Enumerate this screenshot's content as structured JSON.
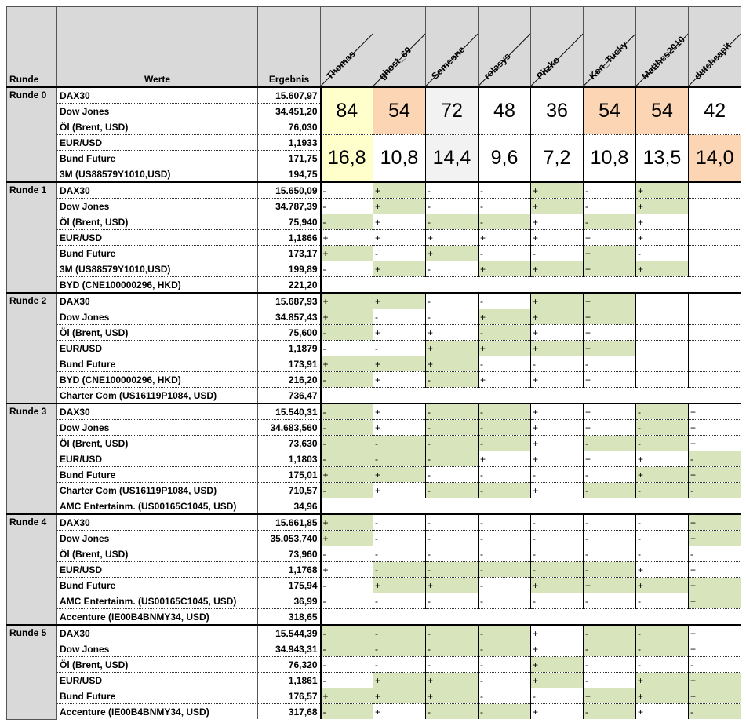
{
  "header": {
    "runde": "Runde",
    "werte": "Werte",
    "ergebnis": "Ergebnis",
    "players": [
      "Thomas",
      "ghost_69",
      "Someone",
      "rolasys",
      "Pitzko",
      "Ken_Tucky",
      "Matthes2010",
      "dutchcapit"
    ]
  },
  "colors": {
    "hit": "#d8e4bc",
    "leader": "#ffffcc",
    "peach": "#fcd5b4",
    "grey": "#f2f2f2",
    "header_bg": "#d9d9d9"
  },
  "round0": {
    "label": "Runde 0",
    "rows": [
      {
        "name": "DAX30",
        "value": "15.607,97"
      },
      {
        "name": "Dow Jones",
        "value": "34.451,20"
      },
      {
        "name": "Öl (Brent, USD)",
        "value": "76,030"
      },
      {
        "name": "EUR/USD",
        "value": "1,1933"
      },
      {
        "name": "Bund Future",
        "value": "171,75"
      },
      {
        "name": "3M (US88579Y1010,USD)",
        "value": "194,75"
      }
    ],
    "points": [
      "84",
      "54",
      "72",
      "48",
      "36",
      "54",
      "54",
      "42"
    ],
    "points_highlight": [
      "leader",
      "peach",
      "grey",
      "",
      "",
      "peach",
      "peach",
      ""
    ],
    "ratio": [
      "16,8",
      "10,8",
      "14,4",
      "9,6",
      "7,2",
      "10,8",
      "13,5",
      "14,0"
    ],
    "ratio_highlight": [
      "leader",
      "",
      "grey",
      "",
      "",
      "",
      "",
      "peach"
    ]
  },
  "rounds": [
    {
      "label": "Runde 1",
      "rows": [
        {
          "name": "DAX30",
          "value": "15.650,09",
          "signs": [
            "-",
            "+",
            "-",
            "-",
            "+",
            "-",
            "+",
            ""
          ],
          "hits": [
            0,
            1,
            0,
            0,
            1,
            0,
            1,
            0
          ]
        },
        {
          "name": "Dow Jones",
          "value": "34.787,39",
          "signs": [
            "-",
            "+",
            "-",
            "-",
            "+",
            "-",
            "+",
            ""
          ],
          "hits": [
            0,
            1,
            0,
            0,
            1,
            0,
            1,
            0
          ]
        },
        {
          "name": "Öl (Brent, USD)",
          "value": "75,940",
          "signs": [
            "-",
            "+",
            "-",
            "-",
            "+",
            "-",
            "+",
            ""
          ],
          "hits": [
            1,
            0,
            1,
            1,
            0,
            1,
            0,
            0
          ]
        },
        {
          "name": "EUR/USD",
          "value": "1,1866",
          "signs": [
            "+",
            "+",
            "+",
            "+",
            "+",
            "+",
            "+",
            ""
          ],
          "hits": [
            0,
            0,
            0,
            0,
            0,
            0,
            0,
            0
          ]
        },
        {
          "name": "Bund Future",
          "value": "173,17",
          "signs": [
            "+",
            "-",
            "+",
            "-",
            "-",
            "+",
            "-",
            ""
          ],
          "hits": [
            1,
            0,
            1,
            0,
            0,
            1,
            0,
            0
          ]
        },
        {
          "name": "3M (US88579Y1010,USD)",
          "value": "199,89",
          "signs": [
            "-",
            "+",
            "-",
            "+",
            "+",
            "+",
            "+",
            ""
          ],
          "hits": [
            0,
            1,
            0,
            1,
            1,
            1,
            1,
            0
          ]
        },
        {
          "name": "BYD (CNE100000296, HKD)",
          "value": "221,20"
        }
      ]
    },
    {
      "label": "Runde 2",
      "rows": [
        {
          "name": "DAX30",
          "value": "15.687,93",
          "signs": [
            "+",
            "+",
            "-",
            "-",
            "+",
            "+",
            "",
            ""
          ],
          "hits": [
            1,
            1,
            0,
            0,
            1,
            1,
            0,
            0
          ]
        },
        {
          "name": "Dow Jones",
          "value": "34.857,43",
          "signs": [
            "+",
            "-",
            "-",
            "+",
            "+",
            "+",
            "",
            ""
          ],
          "hits": [
            1,
            0,
            0,
            1,
            1,
            1,
            0,
            0
          ]
        },
        {
          "name": "Öl (Brent, USD)",
          "value": "75,600",
          "signs": [
            "-",
            "+",
            "+",
            "-",
            "+",
            "+",
            "",
            ""
          ],
          "hits": [
            1,
            0,
            0,
            1,
            0,
            0,
            0,
            0
          ]
        },
        {
          "name": "EUR/USD",
          "value": "1,1879",
          "signs": [
            "-",
            "-",
            "+",
            "+",
            "+",
            "+",
            "",
            ""
          ],
          "hits": [
            0,
            0,
            1,
            1,
            1,
            1,
            0,
            0
          ]
        },
        {
          "name": "Bund Future",
          "value": "173,91",
          "signs": [
            "+",
            "+",
            "+",
            "-",
            "-",
            "-",
            "",
            ""
          ],
          "hits": [
            1,
            1,
            1,
            0,
            0,
            0,
            0,
            0
          ]
        },
        {
          "name": "BYD (CNE100000296, HKD)",
          "value": "216,20",
          "signs": [
            "-",
            "+",
            "-",
            "+",
            "+",
            "+",
            "",
            ""
          ],
          "hits": [
            1,
            0,
            1,
            0,
            0,
            0,
            0,
            0
          ]
        },
        {
          "name": "Charter Com (US16119P1084, USD)",
          "value": "736,47"
        }
      ]
    },
    {
      "label": "Runde 3",
      "rows": [
        {
          "name": "DAX30",
          "value": "15.540,31",
          "signs": [
            "-",
            "+",
            "-",
            "-",
            "+",
            "+",
            "-",
            "+"
          ],
          "hits": [
            1,
            0,
            1,
            1,
            0,
            0,
            1,
            0
          ]
        },
        {
          "name": "Dow Jones",
          "value": "34.683,560",
          "signs": [
            "-",
            "+",
            "-",
            "-",
            "+",
            "+",
            "-",
            "+"
          ],
          "hits": [
            1,
            0,
            1,
            1,
            0,
            0,
            1,
            0
          ]
        },
        {
          "name": "Öl (Brent, USD)",
          "value": "73,630",
          "signs": [
            "-",
            "-",
            "-",
            "-",
            "+",
            "-",
            "-",
            "+"
          ],
          "hits": [
            1,
            1,
            1,
            1,
            0,
            1,
            1,
            0
          ]
        },
        {
          "name": "EUR/USD",
          "value": "1,1803",
          "signs": [
            "-",
            "-",
            "-",
            "+",
            "+",
            "+",
            "+",
            "-"
          ],
          "hits": [
            1,
            1,
            1,
            0,
            0,
            0,
            0,
            1
          ]
        },
        {
          "name": "Bund Future",
          "value": "175,01",
          "signs": [
            "+",
            "+",
            "-",
            "-",
            "-",
            "-",
            "+",
            "+"
          ],
          "hits": [
            1,
            1,
            0,
            0,
            0,
            0,
            1,
            1
          ]
        },
        {
          "name": "Charter Com (US16119P1084, USD)",
          "value": "710,57",
          "signs": [
            "-",
            "+",
            "-",
            "-",
            "+",
            "-",
            "-",
            "-"
          ],
          "hits": [
            1,
            0,
            1,
            1,
            0,
            1,
            1,
            1
          ]
        },
        {
          "name": "AMC Entertainm. (US00165C1045, USD)",
          "value": "34,96"
        }
      ]
    },
    {
      "label": "Runde 4",
      "rows": [
        {
          "name": "DAX30",
          "value": "15.661,85",
          "signs": [
            "+",
            "-",
            "-",
            "-",
            "-",
            "-",
            "-",
            "+"
          ],
          "hits": [
            1,
            0,
            0,
            0,
            0,
            0,
            0,
            1
          ]
        },
        {
          "name": "Dow Jones",
          "value": "35.053,740",
          "signs": [
            "+",
            "-",
            "-",
            "-",
            "-",
            "-",
            "-",
            "+"
          ],
          "hits": [
            1,
            0,
            0,
            0,
            0,
            0,
            0,
            1
          ]
        },
        {
          "name": "Öl (Brent, USD)",
          "value": "73,960",
          "signs": [
            "-",
            "-",
            "-",
            "-",
            "-",
            "-",
            "-",
            "-"
          ],
          "hits": [
            0,
            0,
            0,
            0,
            0,
            0,
            0,
            0
          ]
        },
        {
          "name": "EUR/USD",
          "value": "1,1768",
          "signs": [
            "+",
            "-",
            "-",
            "-",
            "-",
            "-",
            "+",
            "+"
          ],
          "hits": [
            0,
            1,
            1,
            1,
            1,
            1,
            0,
            0
          ]
        },
        {
          "name": "Bund Future",
          "value": "175,94",
          "signs": [
            "-",
            "+",
            "+",
            "-",
            "+",
            "+",
            "+",
            "+"
          ],
          "hits": [
            0,
            1,
            1,
            0,
            1,
            1,
            1,
            1
          ]
        },
        {
          "name": "AMC Entertainm. (US00165C1045, USD)",
          "value": "36,99",
          "signs": [
            "-",
            "-",
            "-",
            "-",
            "-",
            "-",
            "-",
            "+"
          ],
          "hits": [
            0,
            0,
            0,
            0,
            0,
            0,
            0,
            1
          ]
        },
        {
          "name": "Accenture (IE00B4BNMY34, USD)",
          "value": "318,65"
        }
      ]
    },
    {
      "label": "Runde 5",
      "rows": [
        {
          "name": "DAX30",
          "value": "15.544,39",
          "signs": [
            "-",
            "-",
            "-",
            "-",
            "+",
            "-",
            "-",
            "+"
          ],
          "hits": [
            1,
            1,
            1,
            1,
            0,
            1,
            1,
            0
          ]
        },
        {
          "name": "Dow Jones",
          "value": "34.943,31",
          "signs": [
            "-",
            "-",
            "-",
            "-",
            "+",
            "-",
            "-",
            "+"
          ],
          "hits": [
            1,
            1,
            1,
            1,
            0,
            1,
            1,
            0
          ]
        },
        {
          "name": "Öl (Brent, USD)",
          "value": "76,320",
          "signs": [
            "-",
            "-",
            "-",
            "-",
            "+",
            "-",
            "-",
            "-"
          ],
          "hits": [
            0,
            0,
            0,
            0,
            1,
            0,
            0,
            0
          ]
        },
        {
          "name": "EUR/USD",
          "value": "1,1861",
          "signs": [
            "-",
            "+",
            "+",
            "-",
            "+",
            "-",
            "+",
            "+"
          ],
          "hits": [
            0,
            1,
            1,
            0,
            1,
            0,
            1,
            1
          ]
        },
        {
          "name": "Bund Future",
          "value": "176,57",
          "signs": [
            "+",
            "+",
            "+",
            "-",
            "-",
            "+",
            "+",
            "+"
          ],
          "hits": [
            1,
            1,
            1,
            0,
            0,
            1,
            1,
            1
          ]
        },
        {
          "name": "Accenture (IE00B4BNMY34, USD)",
          "value": "317,68",
          "signs": [
            "-",
            "+",
            "-",
            "-",
            "+",
            "-",
            "+",
            "-"
          ],
          "hits": [
            1,
            0,
            1,
            1,
            0,
            1,
            0,
            1
          ]
        }
      ]
    }
  ]
}
